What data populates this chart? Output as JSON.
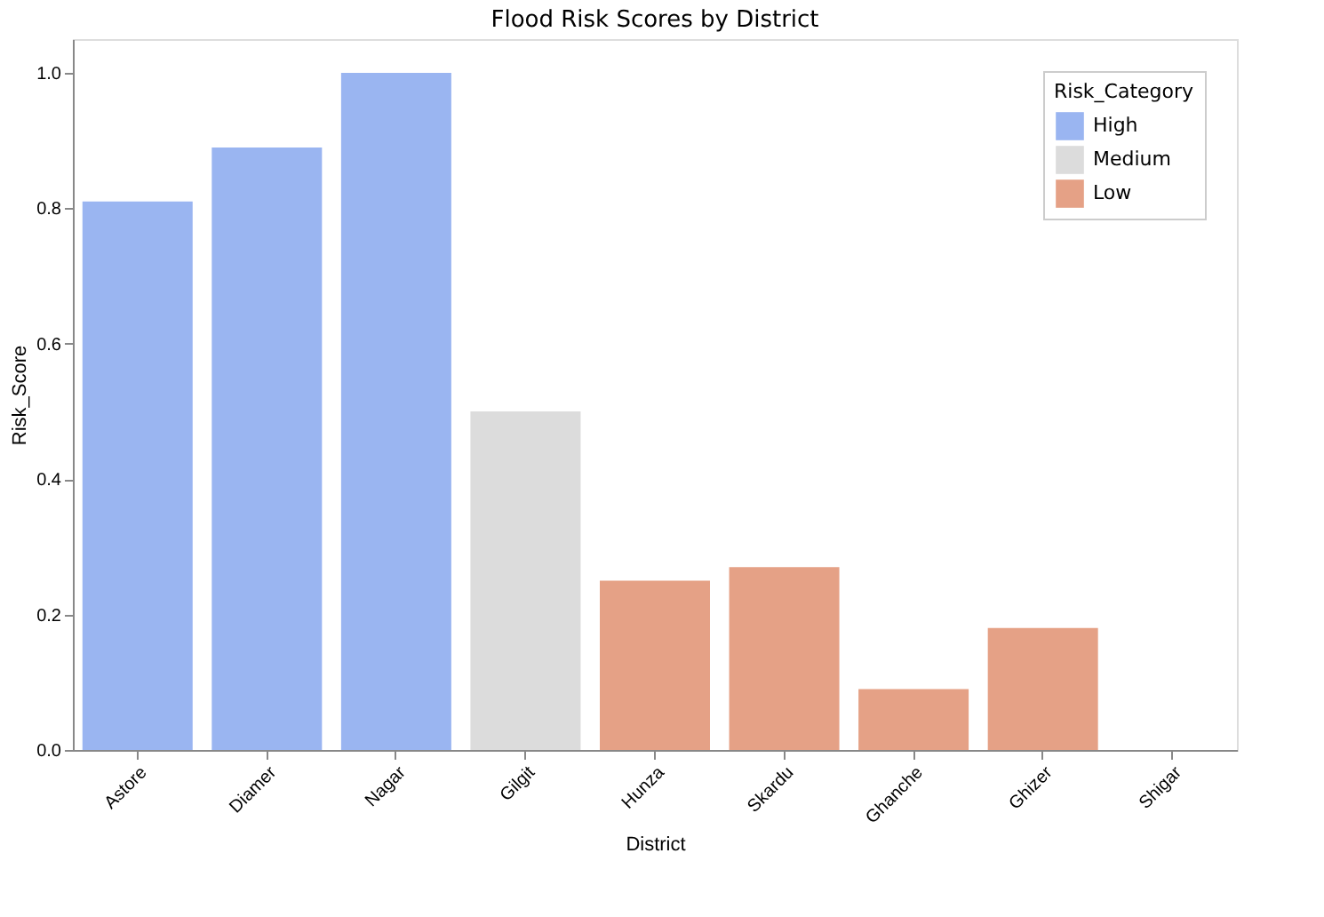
{
  "chart_data": {
    "type": "bar",
    "title": "Flood Risk Scores by District",
    "xlabel": "District",
    "ylabel": "Risk_Score",
    "legend_title": "Risk_Category",
    "categories": [
      "Astore",
      "Diamer",
      "Nagar",
      "Gilgit",
      "Hunza",
      "Skardu",
      "Ghanche",
      "Ghizer",
      "Shigar"
    ],
    "series": [
      {
        "name": "High",
        "color": "#9ab5f1",
        "values": [
          0.81,
          0.89,
          1.0,
          null,
          null,
          null,
          null,
          null,
          null
        ]
      },
      {
        "name": "Medium",
        "color": "#dcdcdc",
        "values": [
          null,
          null,
          null,
          0.5,
          null,
          null,
          null,
          null,
          null
        ]
      },
      {
        "name": "Low",
        "color": "#e5a186",
        "values": [
          null,
          null,
          null,
          null,
          0.25,
          0.27,
          0.09,
          0.18,
          0.0
        ]
      }
    ],
    "ylim": [
      0,
      1.05
    ],
    "yticks": [
      {
        "value": 0,
        "label": "0.0"
      },
      0.2,
      0.4,
      0.6,
      0.8,
      {
        "value": 1,
        "label": "1.0"
      }
    ],
    "grid": false,
    "legend": "top right"
  }
}
